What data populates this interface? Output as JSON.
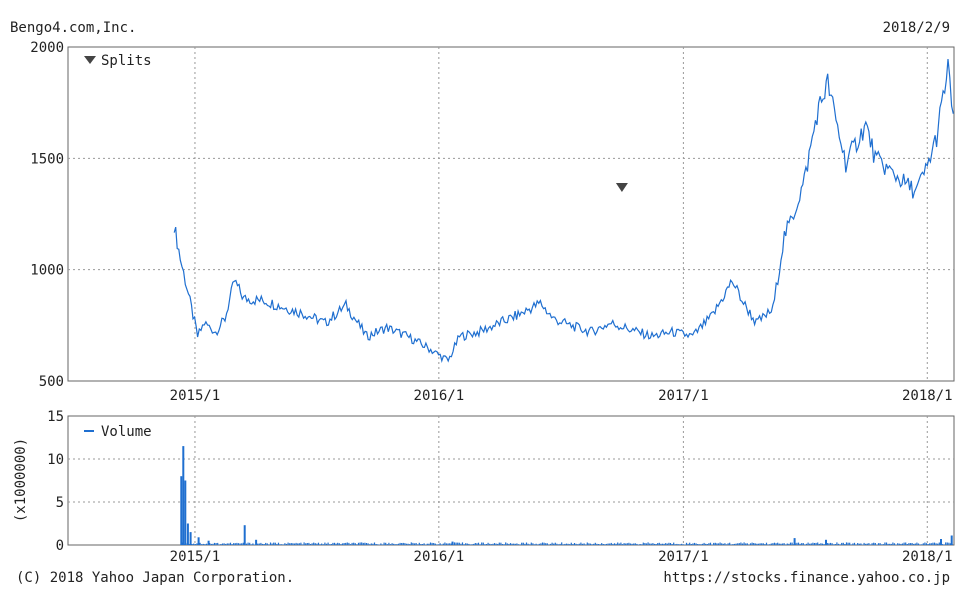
{
  "header": {
    "company": "Bengo4.com,Inc.",
    "date": "2018/2/9"
  },
  "footer": {
    "copyright": "(C) 2018 Yahoo Japan Corporation.",
    "url": "https://stocks.finance.yahoo.co.jp"
  },
  "chart_data": [
    {
      "type": "line",
      "legend_label": "Splits",
      "legend_placement": "top-left",
      "ylim": [
        500,
        2000
      ],
      "y_ticks": [
        "2000",
        "1500",
        "1000",
        "500"
      ],
      "x_ticks": [
        "2015/1",
        "2016/1",
        "2017/1",
        "2018/1"
      ],
      "grid": true,
      "split_marker_date": "2016/10",
      "line_color": "#1f6fd0",
      "points": [
        [
          "2014/12/1",
          1200
        ],
        [
          "2014/12/10",
          1050
        ],
        [
          "2014/12/20",
          920
        ],
        [
          "2015/1/5",
          700
        ],
        [
          "2015/1/15",
          760
        ],
        [
          "2015/2/1",
          720
        ],
        [
          "2015/2/15",
          780
        ],
        [
          "2015/3/1",
          950
        ],
        [
          "2015/3/15",
          870
        ],
        [
          "2015/4/15",
          860
        ],
        [
          "2015/5/15",
          830
        ],
        [
          "2015/6/15",
          800
        ],
        [
          "2015/7/15",
          760
        ],
        [
          "2015/8/15",
          840
        ],
        [
          "2015/9/15",
          700
        ],
        [
          "2015/10/15",
          740
        ],
        [
          "2015/11/15",
          700
        ],
        [
          "2015/12/15",
          650
        ],
        [
          "2016/1/15",
          590
        ],
        [
          "2016/2/1",
          700
        ],
        [
          "2016/3/1",
          720
        ],
        [
          "2016/4/1",
          760
        ],
        [
          "2016/5/1",
          800
        ],
        [
          "2016/6/1",
          850
        ],
        [
          "2016/6/20",
          780
        ],
        [
          "2016/7/15",
          750
        ],
        [
          "2016/8/15",
          720
        ],
        [
          "2016/9/15",
          760
        ],
        [
          "2016/10/15",
          730
        ],
        [
          "2016/11/15",
          700
        ],
        [
          "2016/12/15",
          720
        ],
        [
          "2017/1/15",
          700
        ],
        [
          "2017/2/15",
          800
        ],
        [
          "2017/3/15",
          950
        ],
        [
          "2017/4/1",
          850
        ],
        [
          "2017/4/20",
          760
        ],
        [
          "2017/5/15",
          820
        ],
        [
          "2017/6/1",
          1150
        ],
        [
          "2017/6/15",
          1250
        ],
        [
          "2017/7/1",
          1400
        ],
        [
          "2017/7/20",
          1700
        ],
        [
          "2017/8/5",
          1840
        ],
        [
          "2017/8/15",
          1700
        ],
        [
          "2017/9/1",
          1480
        ],
        [
          "2017/10/1",
          1650
        ],
        [
          "2017/10/15",
          1500
        ],
        [
          "2017/11/15",
          1420
        ],
        [
          "2017/12/15",
          1350
        ],
        [
          "2018/1/1",
          1460
        ],
        [
          "2018/1/15",
          1600
        ],
        [
          "2018/2/1",
          1900
        ],
        [
          "2018/2/9",
          1700
        ]
      ]
    },
    {
      "type": "bar",
      "legend_label": "Volume",
      "legend_placement": "top-left",
      "ylabel": "(x1000000)",
      "ylim": [
        0,
        15
      ],
      "y_ticks": [
        "15",
        "10",
        "5",
        "0"
      ],
      "x_ticks": [
        "2015/1",
        "2016/1",
        "2017/1",
        "2018/1"
      ],
      "grid": true,
      "bar_color": "#1f6fd0",
      "spikes": [
        [
          "2014/12/10",
          8.0
        ],
        [
          "2014/12/13",
          11.5
        ],
        [
          "2014/12/16",
          7.5
        ],
        [
          "2014/12/20",
          2.5
        ],
        [
          "2014/12/24",
          1.5
        ],
        [
          "2015/1/5",
          0.9
        ],
        [
          "2015/1/20",
          0.5
        ],
        [
          "2015/3/15",
          2.3
        ],
        [
          "2015/4/1",
          0.6
        ],
        [
          "2016/1/20",
          0.4
        ],
        [
          "2017/6/15",
          0.8
        ],
        [
          "2017/8/1",
          0.6
        ],
        [
          "2018/1/20",
          0.7
        ],
        [
          "2018/2/5",
          1.1
        ]
      ],
      "baseline_volume": 0.15
    }
  ]
}
